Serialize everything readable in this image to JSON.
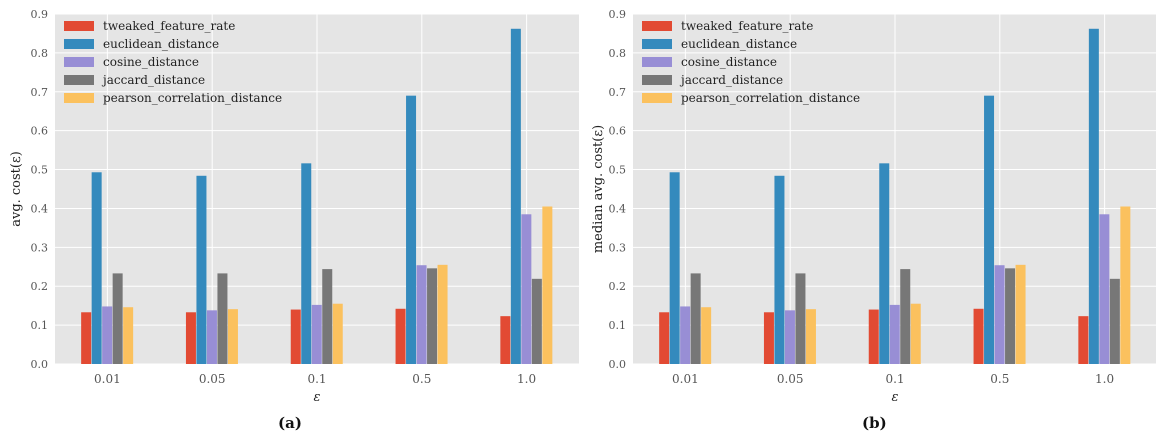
{
  "captions": [
    "(a)",
    "(b)"
  ],
  "chart_data": [
    {
      "type": "bar",
      "ylabel": "avg. cost(ε)",
      "xlabel": "ε",
      "ylim": [
        0,
        0.9
      ],
      "yticks": [
        "0.0",
        "0.1",
        "0.2",
        "0.3",
        "0.4",
        "0.5",
        "0.6",
        "0.7",
        "0.8",
        "0.9"
      ],
      "categories": [
        "0.01",
        "0.05",
        "0.1",
        "0.5",
        "1.0"
      ],
      "grid": true,
      "legend_position": "top-left",
      "series": [
        {
          "name": "tweaked_feature_rate",
          "color": "#E24A33",
          "values": [
            0.133,
            0.133,
            0.14,
            0.142,
            0.123
          ]
        },
        {
          "name": "euclidean_distance",
          "color": "#348ABD",
          "values": [
            0.493,
            0.484,
            0.516,
            0.69,
            0.862
          ]
        },
        {
          "name": "cosine_distance",
          "color": "#988ED5",
          "values": [
            0.148,
            0.138,
            0.152,
            0.254,
            0.385
          ]
        },
        {
          "name": "jaccard_distance",
          "color": "#777777",
          "values": [
            0.233,
            0.233,
            0.244,
            0.246,
            0.219
          ]
        },
        {
          "name": "pearson_correlation_distance",
          "color": "#FBC15E",
          "values": [
            0.146,
            0.141,
            0.155,
            0.255,
            0.405
          ]
        }
      ]
    },
    {
      "type": "bar",
      "ylabel": "median avg. cost(ε)",
      "xlabel": "ε",
      "ylim": [
        0,
        0.9
      ],
      "yticks": [
        "0.0",
        "0.1",
        "0.2",
        "0.3",
        "0.4",
        "0.5",
        "0.6",
        "0.7",
        "0.8",
        "0.9"
      ],
      "categories": [
        "0.01",
        "0.05",
        "0.1",
        "0.5",
        "1.0"
      ],
      "grid": true,
      "legend_position": "top-left",
      "series": [
        {
          "name": "tweaked_feature_rate",
          "color": "#E24A33",
          "values": [
            0.133,
            0.133,
            0.14,
            0.142,
            0.123
          ]
        },
        {
          "name": "euclidean_distance",
          "color": "#348ABD",
          "values": [
            0.493,
            0.484,
            0.516,
            0.69,
            0.862
          ]
        },
        {
          "name": "cosine_distance",
          "color": "#988ED5",
          "values": [
            0.148,
            0.138,
            0.152,
            0.254,
            0.385
          ]
        },
        {
          "name": "jaccard_distance",
          "color": "#777777",
          "values": [
            0.233,
            0.233,
            0.244,
            0.246,
            0.219
          ]
        },
        {
          "name": "pearson_correlation_distance",
          "color": "#FBC15E",
          "values": [
            0.146,
            0.141,
            0.155,
            0.255,
            0.405
          ]
        }
      ]
    }
  ]
}
